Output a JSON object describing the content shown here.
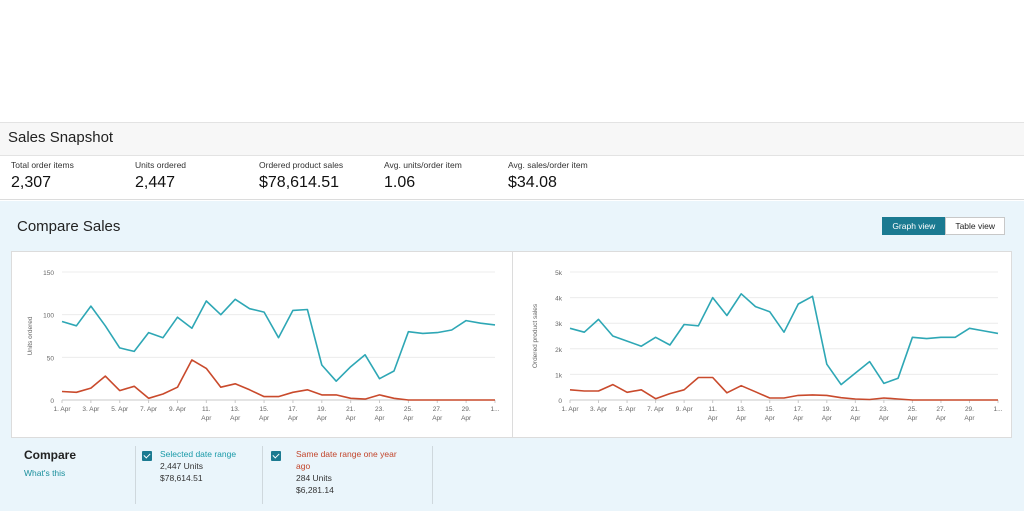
{
  "snapshot": {
    "title": "Sales Snapshot",
    "metrics": [
      {
        "label": "Total order items",
        "value": "2,307"
      },
      {
        "label": "Units ordered",
        "value": "2,447"
      },
      {
        "label": "Ordered product sales",
        "value": "$78,614.51"
      },
      {
        "label": "Avg. units/order item",
        "value": "1.06"
      },
      {
        "label": "Avg. sales/order item",
        "value": "$34.08"
      }
    ]
  },
  "compare": {
    "title": "Compare Sales",
    "graph_view_label": "Graph view",
    "table_view_label": "Table view",
    "footer_title": "Compare",
    "whats_this": "What's this",
    "selected": {
      "label": "Selected date range",
      "units": "2,447 Units",
      "sales": "$78,614.51"
    },
    "previous": {
      "label": "Same date range one year ago",
      "units": "284 Units",
      "sales": "$6,281.14"
    },
    "colors": {
      "selected": "#2ea7b5",
      "previous": "#c94a2c",
      "accent": "#1b7a91"
    }
  },
  "chart_data": [
    {
      "type": "line",
      "ylabel": "Units ordered",
      "ylim": [
        0,
        150
      ],
      "yticks": [
        "0",
        "50",
        "100",
        "150"
      ],
      "xticks": [
        [
          "1. Apr"
        ],
        [
          "3. Apr"
        ],
        [
          "5. Apr"
        ],
        [
          "7. Apr"
        ],
        [
          "9. Apr"
        ],
        [
          "11.",
          "Apr"
        ],
        [
          "13.",
          "Apr"
        ],
        [
          "15.",
          "Apr"
        ],
        [
          "17.",
          "Apr"
        ],
        [
          "19.",
          "Apr"
        ],
        [
          "21.",
          "Apr"
        ],
        [
          "23.",
          "Apr"
        ],
        [
          "25.",
          "Apr"
        ],
        [
          "27.",
          "Apr"
        ],
        [
          "29.",
          "Apr"
        ],
        [
          "1..."
        ]
      ],
      "series": [
        {
          "values": [
            92,
            87,
            110,
            87,
            61,
            57,
            79,
            73,
            97,
            84,
            116,
            100,
            118,
            107,
            103,
            73,
            105,
            106,
            41,
            22,
            39,
            53,
            25,
            34,
            80,
            78,
            79,
            82,
            93,
            90,
            88
          ]
        },
        {
          "values": [
            10,
            9,
            14,
            28,
            11,
            16,
            2,
            7,
            15,
            47,
            37,
            15,
            19,
            12,
            4,
            4,
            9,
            12,
            6,
            6,
            2,
            1,
            6,
            2,
            0,
            0,
            0,
            0,
            0,
            0,
            0
          ]
        }
      ]
    },
    {
      "type": "line",
      "ylabel": "Ordered product sales",
      "ylim": [
        0,
        5000
      ],
      "yticks": [
        "0",
        "1k",
        "2k",
        "3k",
        "4k",
        "5k"
      ],
      "xticks": [
        [
          "1. Apr"
        ],
        [
          "3. Apr"
        ],
        [
          "5. Apr"
        ],
        [
          "7. Apr"
        ],
        [
          "9. Apr"
        ],
        [
          "11.",
          "Apr"
        ],
        [
          "13.",
          "Apr"
        ],
        [
          "15.",
          "Apr"
        ],
        [
          "17.",
          "Apr"
        ],
        [
          "19.",
          "Apr"
        ],
        [
          "21.",
          "Apr"
        ],
        [
          "23.",
          "Apr"
        ],
        [
          "25.",
          "Apr"
        ],
        [
          "27.",
          "Apr"
        ],
        [
          "29.",
          "Apr"
        ],
        [
          "1..."
        ]
      ],
      "series": [
        {
          "values": [
            2800,
            2650,
            3150,
            2500,
            2300,
            2100,
            2450,
            2150,
            2950,
            2900,
            4000,
            3300,
            4150,
            3650,
            3450,
            2650,
            3750,
            4050,
            1400,
            600,
            1050,
            1500,
            650,
            850,
            2450,
            2400,
            2450,
            2450,
            2800,
            2700,
            2600
          ]
        },
        {
          "values": [
            400,
            350,
            350,
            600,
            300,
            400,
            50,
            250,
            400,
            880,
            880,
            280,
            560,
            320,
            80,
            80,
            180,
            200,
            180,
            90,
            40,
            20,
            80,
            40,
            0,
            0,
            0,
            0,
            0,
            0,
            0
          ]
        }
      ]
    }
  ]
}
